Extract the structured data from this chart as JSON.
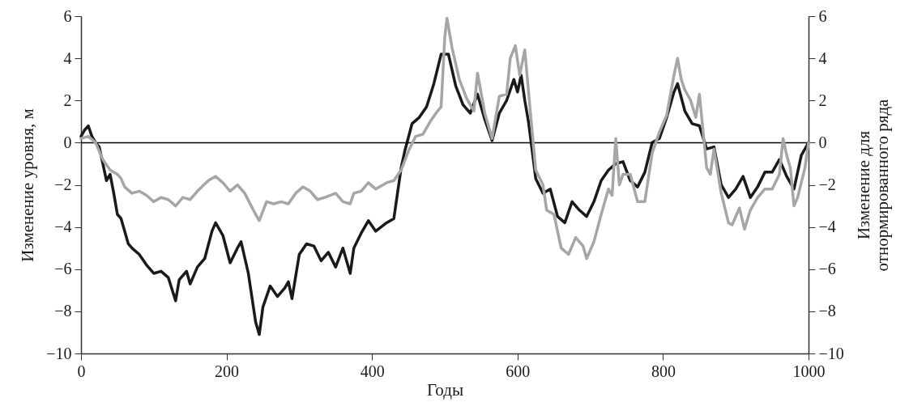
{
  "chart_data": {
    "type": "line",
    "xlabel": "Годы",
    "ylabel": "Изменение уровня, м",
    "y2label": "Изменение для\nотнормированного ряда",
    "x": [
      0,
      5,
      10,
      15,
      20,
      25,
      30,
      35,
      40,
      45,
      50,
      55,
      60,
      65,
      70,
      80,
      90,
      100,
      110,
      120,
      130,
      135,
      145,
      150,
      160,
      170,
      180,
      185,
      195,
      205,
      215,
      220,
      230,
      240,
      245,
      250,
      260,
      270,
      280,
      285,
      290,
      300,
      310,
      320,
      330,
      340,
      350,
      360,
      370,
      375,
      385,
      395,
      405,
      420,
      430,
      440,
      445,
      455,
      465,
      475,
      485,
      495,
      505,
      515,
      525,
      535,
      545,
      555,
      565,
      575,
      585,
      595,
      600,
      605,
      610,
      615,
      625,
      635,
      645,
      655,
      665,
      675,
      685,
      695,
      705,
      715,
      725,
      735,
      745,
      755,
      765,
      775,
      785,
      795,
      805,
      815,
      820,
      830,
      840,
      850,
      860,
      870,
      880,
      890,
      900,
      910,
      920,
      930,
      940,
      950,
      960,
      970,
      980,
      990,
      1000
    ],
    "series": [
      {
        "color": "#1a1a1a",
        "axis": "y",
        "values": [
          0.3,
          0.6,
          0.8,
          0.3,
          0,
          -0.2,
          -1,
          -1.8,
          -1.5,
          -2.4,
          -3.4,
          -3.6,
          -4.2,
          -4.8,
          -5,
          -5.3,
          -5.8,
          -6.2,
          -6.1,
          -6.4,
          -7.5,
          -6.5,
          -6.1,
          -6.7,
          -5.9,
          -5.5,
          -4.2,
          -3.8,
          -4.4,
          -5.7,
          -5,
          -4.7,
          -6.2,
          -8.5,
          -9.1,
          -7.8,
          -6.8,
          -7.3,
          -6.9,
          -6.6,
          -7.4,
          -5.3,
          -4.8,
          -4.9,
          -5.6,
          -5.2,
          -5.9,
          -5,
          -6.2,
          -5,
          -4.3,
          -3.7,
          -4.2,
          -3.8,
          -3.6,
          -1.2,
          -0.4,
          0.9,
          1.2,
          1.7,
          2.8,
          4.2,
          4.2,
          2.7,
          1.8,
          1.4,
          2.3,
          1.1,
          0.1,
          1.4,
          2.0,
          3.0,
          2.4,
          3.2,
          2.0,
          1.0,
          -1.7,
          -2.4,
          -2.2,
          -3.5,
          -3.8,
          -2.8,
          -3.2,
          -3.5,
          -2.8,
          -1.8,
          -1.3,
          -1.0,
          -0.9,
          -1.8,
          -2.1,
          -1.4,
          0,
          0.2,
          1.2,
          2.4,
          2.8,
          1.5,
          0.9,
          0.8,
          -0.3,
          -0.2,
          -2.0,
          -2.6,
          -2.2,
          -1.6,
          -2.6,
          -2.1,
          -1.4,
          -1.4,
          -0.8,
          -1.6,
          -2.2,
          -0.6,
          0
        ]
      },
      {
        "color": "#a6a6a6",
        "axis": "y2",
        "x": [
          0,
          10,
          20,
          30,
          40,
          50,
          55,
          60,
          70,
          80,
          90,
          100,
          110,
          120,
          130,
          140,
          150,
          160,
          175,
          185,
          195,
          205,
          215,
          225,
          240,
          245,
          255,
          265,
          275,
          285,
          295,
          305,
          315,
          325,
          335,
          350,
          360,
          370,
          375,
          385,
          395,
          405,
          420,
          430,
          440,
          450,
          460,
          470,
          480,
          490,
          495,
          500,
          503,
          510,
          520,
          530,
          540,
          545,
          555,
          565,
          575,
          585,
          590,
          597,
          603,
          610,
          617,
          625,
          635,
          640,
          650,
          660,
          670,
          680,
          690,
          695,
          705,
          715,
          725,
          730,
          735,
          740,
          745,
          755,
          765,
          775,
          785,
          795,
          805,
          815,
          820,
          825,
          830,
          838,
          845,
          850,
          860,
          865,
          870,
          880,
          890,
          895,
          905,
          912,
          920,
          930,
          940,
          950,
          960,
          965,
          970,
          975,
          980,
          985,
          995,
          1000
        ],
        "values": [
          0.2,
          0.3,
          0,
          -0.8,
          -1.3,
          -1.5,
          -1.7,
          -2.1,
          -2.4,
          -2.3,
          -2.5,
          -2.8,
          -2.6,
          -2.7,
          -3.0,
          -2.6,
          -2.7,
          -2.3,
          -1.8,
          -1.6,
          -1.9,
          -2.3,
          -2.0,
          -2.4,
          -3.4,
          -3.7,
          -2.8,
          -2.9,
          -2.8,
          -2.9,
          -2.4,
          -2.1,
          -2.3,
          -2.7,
          -2.6,
          -2.4,
          -2.8,
          -2.9,
          -2.4,
          -2.3,
          -1.9,
          -2.2,
          -1.9,
          -1.8,
          -1.3,
          -0.4,
          0.3,
          0.4,
          1.0,
          1.5,
          1.7,
          5.0,
          5.9,
          4.5,
          3.0,
          2.1,
          1.5,
          3.3,
          1.4,
          0.2,
          2.2,
          2.3,
          4.0,
          4.6,
          3.2,
          4.4,
          1.7,
          -1.3,
          -2.0,
          -3.2,
          -3.4,
          -5.0,
          -5.3,
          -4.5,
          -4.9,
          -5.5,
          -4.7,
          -3.4,
          -2.2,
          -2.5,
          0.2,
          -2.0,
          -1.5,
          -1.5,
          -2.8,
          -2.8,
          -0.5,
          0.5,
          1.3,
          3.2,
          4.0,
          3.0,
          2.5,
          2.0,
          1.2,
          2.3,
          -1.2,
          -1.5,
          -0.3,
          -2.4,
          -3.8,
          -3.9,
          -3.1,
          -4.1,
          -3.2,
          -2.6,
          -2.2,
          -2.2,
          -1.5,
          0.2,
          -0.6,
          -1.2,
          -3.0,
          -2.6,
          -1.2,
          0
        ]
      }
    ],
    "xlim": [
      0,
      1000
    ],
    "xticks": [
      0,
      200,
      400,
      600,
      800,
      1000
    ],
    "ylim": [
      -10,
      6
    ],
    "yticks": [
      {
        "value": -10,
        "label": "−10"
      },
      {
        "value": -8,
        "label": "−8"
      },
      {
        "value": -6,
        "label": "−6"
      },
      {
        "value": -4,
        "label": "−4"
      },
      {
        "value": -2,
        "label": "−2"
      },
      {
        "value": 0,
        "label": "0"
      },
      {
        "value": 2,
        "label": "2"
      },
      {
        "value": 4,
        "label": "4"
      },
      {
        "value": 6,
        "label": "6"
      }
    ],
    "y2lim": [
      -10,
      6
    ],
    "y2ticks": [
      {
        "value": -10,
        "label": "−10"
      },
      {
        "value": -8,
        "label": "−8"
      },
      {
        "value": -6,
        "label": "−6"
      },
      {
        "value": -4,
        "label": "−4"
      },
      {
        "value": -2,
        "label": "−2"
      },
      {
        "value": 0,
        "label": "0"
      },
      {
        "value": 2,
        "label": "2"
      },
      {
        "value": 4,
        "label": "4"
      },
      {
        "value": 6,
        "label": "6"
      }
    ],
    "ref_lines": [
      {
        "axis": "y",
        "value": 0,
        "color": "#000000"
      }
    ],
    "grid": false,
    "marker": "none",
    "line_style": "solid"
  }
}
